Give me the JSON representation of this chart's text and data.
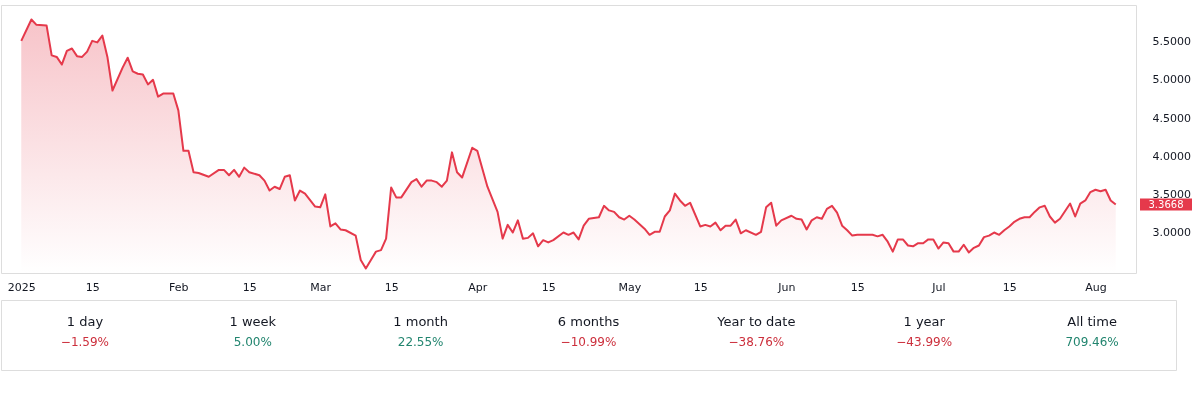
{
  "chart_data": [
    {
      "type": "area",
      "marker": "none",
      "line_style": "solid",
      "x": [
        "2025-01-01",
        "2025-01-03",
        "2025-01-04",
        "2025-01-06",
        "2025-01-07",
        "2025-01-08",
        "2025-01-09",
        "2025-01-10",
        "2025-01-11",
        "2025-01-12",
        "2025-01-13",
        "2025-01-14",
        "2025-01-15",
        "2025-01-16",
        "2025-01-17",
        "2025-01-18",
        "2025-01-19",
        "2025-01-21",
        "2025-01-22",
        "2025-01-23",
        "2025-01-24",
        "2025-01-25",
        "2025-01-26",
        "2025-01-27",
        "2025-01-28",
        "2025-01-29",
        "2025-01-31",
        "2025-02-01",
        "2025-02-02",
        "2025-02-03",
        "2025-02-04",
        "2025-02-05",
        "2025-02-07",
        "2025-02-09",
        "2025-02-10",
        "2025-02-11",
        "2025-02-12",
        "2025-02-13",
        "2025-02-14",
        "2025-02-15",
        "2025-02-17",
        "2025-02-18",
        "2025-02-19",
        "2025-02-20",
        "2025-02-21",
        "2025-02-22",
        "2025-02-23",
        "2025-02-24",
        "2025-02-25",
        "2025-02-26",
        "2025-02-28",
        "2025-03-01",
        "2025-03-02",
        "2025-03-03",
        "2025-03-04",
        "2025-03-05",
        "2025-03-06",
        "2025-03-08",
        "2025-03-09",
        "2025-03-10",
        "2025-03-12",
        "2025-03-13",
        "2025-03-14",
        "2025-03-15",
        "2025-03-16",
        "2025-03-17",
        "2025-03-19",
        "2025-03-20",
        "2025-03-21",
        "2025-03-22",
        "2025-03-23",
        "2025-03-24",
        "2025-03-25",
        "2025-03-26",
        "2025-03-27",
        "2025-03-28",
        "2025-03-29",
        "2025-03-31",
        "2025-04-01",
        "2025-04-03",
        "2025-04-05",
        "2025-04-06",
        "2025-04-07",
        "2025-04-08",
        "2025-04-09",
        "2025-04-10",
        "2025-04-11",
        "2025-04-12",
        "2025-04-13",
        "2025-04-14",
        "2025-04-15",
        "2025-04-16",
        "2025-04-18",
        "2025-04-19",
        "2025-04-20",
        "2025-04-21",
        "2025-04-22",
        "2025-04-23",
        "2025-04-25",
        "2025-04-26",
        "2025-04-27",
        "2025-04-28",
        "2025-04-29",
        "2025-04-30",
        "2025-05-01",
        "2025-05-02",
        "2025-05-04",
        "2025-05-05",
        "2025-05-06",
        "2025-05-07",
        "2025-05-08",
        "2025-05-09",
        "2025-05-10",
        "2025-05-11",
        "2025-05-12",
        "2025-05-13",
        "2025-05-15",
        "2025-05-16",
        "2025-05-17",
        "2025-05-18",
        "2025-05-19",
        "2025-05-20",
        "2025-05-21",
        "2025-05-22",
        "2025-05-23",
        "2025-05-24",
        "2025-05-26",
        "2025-05-27",
        "2025-05-28",
        "2025-05-29",
        "2025-05-30",
        "2025-05-31",
        "2025-06-02",
        "2025-06-03",
        "2025-06-04",
        "2025-06-05",
        "2025-06-06",
        "2025-06-07",
        "2025-06-08",
        "2025-06-09",
        "2025-06-10",
        "2025-06-11",
        "2025-06-12",
        "2025-06-13",
        "2025-06-14",
        "2025-06-15",
        "2025-06-18",
        "2025-06-19",
        "2025-06-20",
        "2025-06-21",
        "2025-06-22",
        "2025-06-23",
        "2025-06-24",
        "2025-06-25",
        "2025-06-26",
        "2025-06-27",
        "2025-06-28",
        "2025-06-29",
        "2025-06-30",
        "2025-07-01",
        "2025-07-02",
        "2025-07-03",
        "2025-07-04",
        "2025-07-05",
        "2025-07-06",
        "2025-07-07",
        "2025-07-08",
        "2025-07-09",
        "2025-07-10",
        "2025-07-11",
        "2025-07-12",
        "2025-07-13",
        "2025-07-14",
        "2025-07-15",
        "2025-07-16",
        "2025-07-17",
        "2025-07-18",
        "2025-07-19",
        "2025-07-20",
        "2025-07-21",
        "2025-07-22",
        "2025-07-23",
        "2025-07-24",
        "2025-07-25",
        "2025-07-27",
        "2025-07-28",
        "2025-07-29",
        "2025-07-30",
        "2025-07-31",
        "2025-08-01",
        "2025-08-02",
        "2025-08-03",
        "2025-08-04",
        "2025-08-05"
      ],
      "series": [
        {
          "color": "#e5394b",
          "values": [
            5.51,
            5.79,
            5.72,
            5.71,
            5.32,
            5.3,
            5.2,
            5.38,
            5.41,
            5.31,
            5.3,
            5.37,
            5.51,
            5.49,
            5.58,
            5.3,
            4.86,
            5.16,
            5.29,
            5.11,
            5.08,
            5.07,
            4.94,
            5.0,
            4.78,
            4.82,
            4.82,
            4.6,
            4.07,
            4.07,
            3.79,
            3.78,
            3.73,
            3.82,
            3.82,
            3.75,
            3.82,
            3.73,
            3.85,
            3.79,
            3.75,
            3.68,
            3.55,
            3.6,
            3.57,
            3.73,
            3.75,
            3.42,
            3.55,
            3.51,
            3.34,
            3.33,
            3.5,
            3.08,
            3.12,
            3.04,
            3.03,
            2.96,
            2.64,
            2.53,
            2.75,
            2.77,
            2.92,
            3.59,
            3.46,
            3.46,
            3.66,
            3.7,
            3.6,
            3.68,
            3.68,
            3.66,
            3.6,
            3.68,
            4.05,
            3.79,
            3.72,
            4.11,
            4.07,
            3.6,
            3.27,
            2.92,
            3.1,
            3.0,
            3.16,
            2.92,
            2.93,
            2.99,
            2.82,
            2.9,
            2.87,
            2.9,
            3.0,
            2.97,
            3.0,
            2.91,
            3.09,
            3.18,
            3.2,
            3.35,
            3.29,
            3.27,
            3.2,
            3.17,
            3.22,
            3.17,
            3.05,
            2.97,
            3.01,
            3.01,
            3.21,
            3.29,
            3.51,
            3.42,
            3.35,
            3.39,
            3.08,
            3.1,
            3.08,
            3.13,
            3.03,
            3.09,
            3.09,
            3.17,
            2.99,
            3.03,
            2.97,
            3.01,
            3.33,
            3.39,
            3.09,
            3.16,
            3.22,
            3.18,
            3.17,
            3.04,
            3.16,
            3.2,
            3.18,
            3.31,
            3.35,
            3.26,
            3.09,
            3.03,
            2.96,
            2.97,
            2.97,
            2.95,
            2.97,
            2.88,
            2.75,
            2.91,
            2.91,
            2.83,
            2.82,
            2.86,
            2.86,
            2.91,
            2.91,
            2.79,
            2.87,
            2.86,
            2.75,
            2.75,
            2.84,
            2.74,
            2.8,
            2.83,
            2.94,
            2.96,
            3.0,
            2.97,
            3.03,
            3.08,
            3.14,
            3.18,
            3.2,
            3.2,
            3.27,
            3.33,
            3.35,
            3.21,
            3.13,
            3.18,
            3.38,
            3.21,
            3.38,
            3.42,
            3.53,
            3.56,
            3.54,
            3.56,
            3.42,
            3.3668
          ]
        }
      ],
      "xlim": [
        "2024-12-28",
        "2025-08-09"
      ],
      "xticks": [
        {
          "value": "2025-01-01",
          "label": "2025"
        },
        {
          "value": "2025-01-15",
          "label": "15"
        },
        {
          "value": "2025-02-01",
          "label": "Feb"
        },
        {
          "value": "2025-02-15",
          "label": "15"
        },
        {
          "value": "2025-03-01",
          "label": "Mar"
        },
        {
          "value": "2025-03-15",
          "label": "15"
        },
        {
          "value": "2025-04-01",
          "label": "Apr"
        },
        {
          "value": "2025-04-15",
          "label": "15"
        },
        {
          "value": "2025-05-01",
          "label": "May"
        },
        {
          "value": "2025-05-15",
          "label": "15"
        },
        {
          "value": "2025-06-01",
          "label": "Jun"
        },
        {
          "value": "2025-06-15",
          "label": "15"
        },
        {
          "value": "2025-07-01",
          "label": "Jul"
        },
        {
          "value": "2025-07-15",
          "label": "15"
        },
        {
          "value": "2025-08-01",
          "label": "Aug"
        }
      ],
      "ylim": [
        2.47,
        5.98
      ],
      "yticks": [
        {
          "value": 3.0,
          "label": "3.0000"
        },
        {
          "value": 3.5,
          "label": "3.5000"
        },
        {
          "value": 4.0,
          "label": "4.0000"
        },
        {
          "value": 4.5,
          "label": "4.5000"
        },
        {
          "value": 5.0,
          "label": "5.0000"
        },
        {
          "value": 5.5,
          "label": "5.5000"
        }
      ],
      "annotations": [
        "3.3668"
      ]
    },
    {
      "type": "other",
      "categories": [
        "1 day",
        "1 week",
        "1 month",
        "6 months",
        "Year to date",
        "1 year",
        "All time"
      ],
      "value_labels": [
        "−1.59%",
        "5.00%",
        "22.55%",
        "−10.99%",
        "−38.76%",
        "−43.99%",
        "709.46%"
      ],
      "colors": [
        "#cc2f3c",
        "#22856f",
        "#22856f",
        "#cc2f3c",
        "#cc2f3c",
        "#cc2f3c",
        "#22856f"
      ]
    }
  ]
}
